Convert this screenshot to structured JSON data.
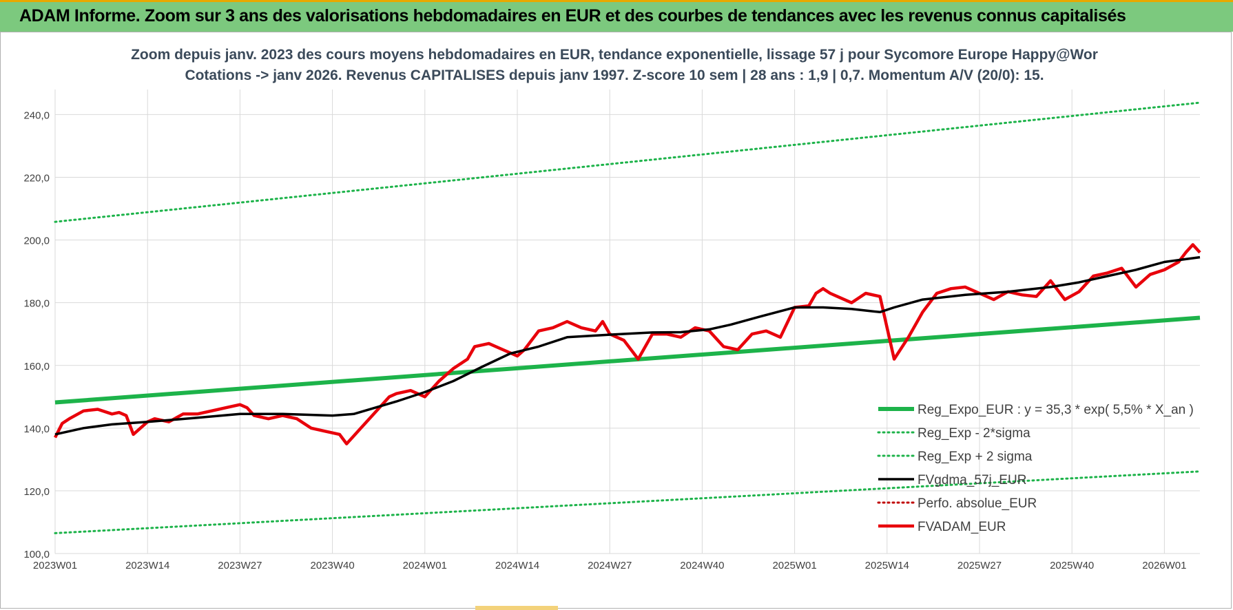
{
  "banner": {
    "title": "ADAM Informe. Zoom sur 3 ans des valorisations hebdomadaires en EUR et des courbes de tendances avec les revenus connus capitalisés"
  },
  "colors": {
    "banner_bg": "#7cc97e",
    "reg_expo": "#1db34a",
    "sigma_bands": "#1db34a",
    "fvgdma": "#000000",
    "perfo": "#c00000",
    "fvadam": "#e8000b",
    "grid": "#d9d9d9"
  },
  "chart_data": {
    "type": "line",
    "title": "Zoom depuis janv. 2023 des cours moyens hebdomadaires en EUR, tendance exponentielle, lissage 57 j pour Sycomore Europe Happy@Wor",
    "subtitle": "Cotations -> janv 2026. Revenus CAPITALISES depuis janv 1997. Z-score 10 sem | 28 ans : 1,9 | 0,7. Momentum A/V (20/0): 15.",
    "x_ticks": [
      "2023W01",
      "2023W14",
      "2023W27",
      "2023W40",
      "2024W01",
      "2024W14",
      "2024W27",
      "2024W40",
      "2025W01",
      "2025W14",
      "2025W27",
      "2025W40",
      "2026W01"
    ],
    "y_ticks": [
      "100,0",
      "120,0",
      "140,0",
      "160,0",
      "180,0",
      "200,0",
      "220,0",
      "240,0"
    ],
    "ylim": [
      100,
      248
    ],
    "grid": true,
    "legend_position": "bottom-right",
    "series": [
      {
        "name": "Reg_Expo_EUR : y = 35,3 * exp( 5,5% *  X_an )",
        "style": "solid-thick",
        "color": "#1db34a",
        "x": [
          0,
          161
        ],
        "values": [
          148.2,
          175.2
        ]
      },
      {
        "name": "Reg_Exp - 2*sigma",
        "style": "dotted",
        "color": "#1db34a",
        "x": [
          0,
          161
        ],
        "values": [
          106.5,
          126.2
        ]
      },
      {
        "name": "Reg_Exp + 2 sigma",
        "style": "dotted",
        "color": "#1db34a",
        "x": [
          0,
          161
        ],
        "values": [
          205.8,
          243.8
        ]
      },
      {
        "name": "FVgdma_57j_EUR",
        "style": "solid",
        "color": "#000000",
        "x": [
          0,
          4,
          8,
          13,
          20,
          26,
          32,
          35,
          39,
          42,
          48,
          52,
          56,
          60,
          64,
          68,
          72,
          78,
          84,
          88,
          92,
          95,
          99,
          104,
          108,
          112,
          116,
          118,
          122,
          128,
          134,
          140,
          144,
          148,
          152,
          156,
          161
        ],
        "values": [
          138,
          140,
          141.2,
          142,
          143.3,
          144.5,
          144.5,
          144.3,
          144,
          144.5,
          148.5,
          151.5,
          155,
          159.5,
          163.8,
          166,
          169,
          169.8,
          170.5,
          170.6,
          171.5,
          173,
          175.5,
          178.5,
          178.5,
          178,
          177,
          178.5,
          181,
          182.5,
          183.5,
          185,
          186.5,
          188.5,
          190.5,
          193,
          194.5
        ]
      },
      {
        "name": "Perfo. absolue_EUR",
        "style": "dotted",
        "color": "#c00000",
        "x": [],
        "values": []
      },
      {
        "name": "FVADAM_EUR",
        "style": "solid-thick",
        "color": "#e8000b",
        "x": [
          0,
          1,
          2,
          4,
          6,
          8,
          9,
          10,
          11,
          12,
          13,
          14,
          16,
          18,
          20,
          22,
          24,
          26,
          27,
          28,
          30,
          32,
          34,
          36,
          38,
          40,
          41,
          43,
          45,
          47,
          48,
          50,
          52,
          54,
          56,
          58,
          59,
          61,
          63,
          65,
          66,
          68,
          70,
          72,
          74,
          76,
          77,
          78,
          80,
          82,
          84,
          86,
          88,
          90,
          92,
          94,
          96,
          98,
          100,
          102,
          104,
          106,
          107,
          108,
          109,
          110,
          112,
          114,
          116,
          118,
          120,
          122,
          124,
          126,
          128,
          130,
          132,
          134,
          136,
          138,
          140,
          142,
          144,
          146,
          148,
          150,
          152,
          154,
          156,
          158,
          159,
          160,
          161
        ],
        "values": [
          137,
          141.5,
          143,
          145.5,
          146,
          144.5,
          145,
          144,
          138,
          140,
          142,
          143,
          142,
          144.5,
          144.5,
          145.5,
          146.5,
          147.5,
          146.5,
          144,
          143,
          144,
          143,
          140,
          139,
          138,
          135,
          140,
          145,
          150,
          151,
          152,
          150,
          155,
          159,
          162,
          166,
          167,
          165,
          163,
          165,
          171,
          172,
          174,
          172,
          171,
          174,
          170,
          168,
          162,
          170,
          170,
          169,
          172,
          171,
          166,
          165,
          170,
          171,
          169,
          178.5,
          179,
          183,
          184.5,
          183,
          182,
          180,
          183,
          182,
          162,
          169,
          177,
          183,
          184.5,
          185,
          183,
          181,
          183.5,
          182.5,
          182,
          187,
          181,
          183.5,
          188.5,
          189.5,
          191,
          185,
          189,
          190.5,
          193,
          196,
          198.5,
          196
        ]
      }
    ]
  }
}
